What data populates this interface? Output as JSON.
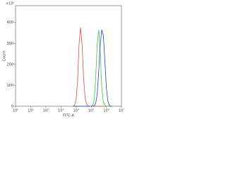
{
  "chart_data": {
    "type": "line",
    "x_label": "FITC-A",
    "y_label": "Count",
    "annotation": "×10¹",
    "xscale": "log",
    "xlim": [
      1,
      10000000
    ],
    "xticks": [
      {
        "value": 1,
        "label": "10⁰"
      },
      {
        "value": 10,
        "label": "10¹"
      },
      {
        "value": 100,
        "label": "10²"
      },
      {
        "value": 1000,
        "label": "10³"
      },
      {
        "value": 10000,
        "label": "10⁴"
      },
      {
        "value": 100000,
        "label": "10⁵"
      },
      {
        "value": 1000000,
        "label": "10⁶"
      },
      {
        "value": 10000000,
        "label": "10⁷"
      }
    ],
    "ylim": [
      0,
      480
    ],
    "yticks": [
      0,
      100,
      200,
      300,
      400
    ],
    "x": [
      6310,
      7943,
      10000,
      12589,
      15849,
      19953,
      25119,
      31623,
      39811,
      50119,
      63096,
      79433,
      100000,
      125893,
      158489,
      199526,
      251189,
      316228,
      398107,
      501187,
      630957,
      794328,
      1000000,
      1258925,
      1584893,
      1995262,
      2511886
    ],
    "series": [
      {
        "name": "red",
        "color": "#e8493c",
        "values": [
          0,
          5,
          30,
          120,
          300,
          375,
          290,
          130,
          40,
          10,
          2,
          0,
          0,
          0,
          0,
          0,
          0,
          0,
          0,
          0,
          0,
          0,
          0,
          0,
          0,
          0,
          0
        ]
      },
      {
        "name": "green",
        "color": "#3ccb3c",
        "values": [
          0,
          0,
          0,
          0,
          0,
          0,
          0,
          0,
          0,
          0,
          0,
          0,
          0,
          5,
          30,
          140,
          300,
          365,
          250,
          90,
          20,
          5,
          0,
          0,
          0,
          0,
          0
        ]
      },
      {
        "name": "blue",
        "color": "#2a3fd6",
        "values": [
          0,
          0,
          0,
          0,
          0,
          0,
          0,
          0,
          0,
          0,
          0,
          0,
          0,
          0,
          2,
          15,
          60,
          170,
          300,
          365,
          340,
          220,
          90,
          25,
          5,
          0,
          0
        ]
      }
    ]
  }
}
